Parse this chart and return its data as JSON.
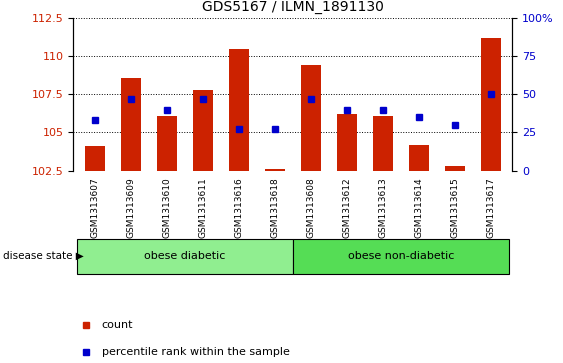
{
  "title": "GDS5167 / ILMN_1891130",
  "samples": [
    "GSM1313607",
    "GSM1313609",
    "GSM1313610",
    "GSM1313611",
    "GSM1313616",
    "GSM1313618",
    "GSM1313608",
    "GSM1313612",
    "GSM1313613",
    "GSM1313614",
    "GSM1313615",
    "GSM1313617"
  ],
  "counts": [
    104.1,
    108.6,
    106.1,
    107.8,
    110.5,
    102.6,
    109.4,
    106.2,
    106.1,
    104.2,
    102.8,
    111.2
  ],
  "percentiles": [
    33,
    47,
    40,
    47,
    27,
    27,
    47,
    40,
    40,
    35,
    30,
    50
  ],
  "ylim_left": [
    102.5,
    112.5
  ],
  "ylim_right": [
    0,
    100
  ],
  "yticks_left": [
    102.5,
    105.0,
    107.5,
    110.0,
    112.5
  ],
  "yticks_right": [
    0,
    25,
    50,
    75,
    100
  ],
  "bar_color": "#cc2200",
  "marker_color": "#0000cc",
  "bar_width": 0.55,
  "groups": [
    {
      "label": "obese diabetic",
      "start": 0,
      "end": 5,
      "color": "#90ee90"
    },
    {
      "label": "obese non-diabetic",
      "start": 6,
      "end": 11,
      "color": "#55dd55"
    }
  ],
  "disease_label": "disease state",
  "legend_count": "count",
  "legend_percentile": "percentile rank within the sample",
  "background_color": "#ffffff",
  "plot_bg_color": "#ffffff",
  "xtick_bg_color": "#d8d8d8"
}
